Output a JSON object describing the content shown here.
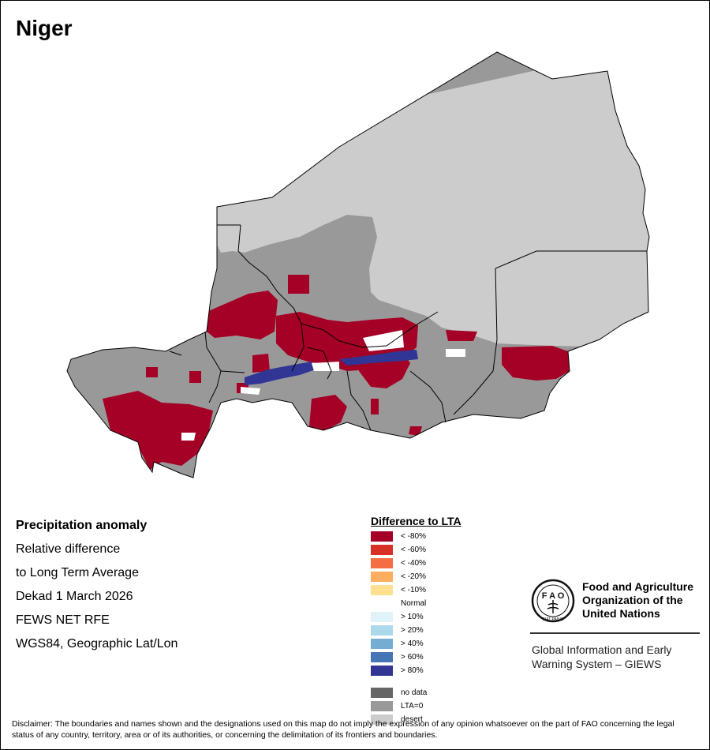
{
  "map": {
    "title": "Niger"
  },
  "info": {
    "heading": "Precipitation anomaly",
    "line1": "Relative difference",
    "line2": "to Long Term Average",
    "line3": "Dekad 1 March 2026",
    "line4": "FEWS NET RFE",
    "line5": "WGS84, Geographic Lat/Lon"
  },
  "legend": {
    "title": "Difference to LTA",
    "items": [
      {
        "label": "< -80%",
        "color": "#a50026"
      },
      {
        "label": "< -60%",
        "color": "#d73027"
      },
      {
        "label": "< -40%",
        "color": "#f46d43"
      },
      {
        "label": "< -20%",
        "color": "#fdae61"
      },
      {
        "label": "< -10%",
        "color": "#fee090"
      },
      {
        "label": "Normal",
        "color": "#ffffff"
      },
      {
        "label": "> 10%",
        "color": "#e0f3f8"
      },
      {
        "label": "> 20%",
        "color": "#abd9e9"
      },
      {
        "label": "> 40%",
        "color": "#74add1"
      },
      {
        "label": "> 60%",
        "color": "#4575b4"
      },
      {
        "label": "> 80%",
        "color": "#313695"
      },
      {
        "label": "no data",
        "color": "#666666"
      },
      {
        "label": "LTA=0",
        "color": "#999999"
      },
      {
        "label": "desert",
        "color": "#cccccc"
      }
    ]
  },
  "fao": {
    "name_line1": "Food and Agriculture",
    "name_line2": "Organization of the",
    "name_line3": "United Nations",
    "seal_text": "FIAT PANIS",
    "giews_line1": "Global Information and Early",
    "giews_line2": "Warning System – GIEWS"
  },
  "disclaimer": "Disclaimer: The boundaries and names shown and the designations used on this map do not imply the expression of any opinion whatsoever on the part of FAO concerning the legal status of any country, territory, area or of its authorities, or concerning the delimitation of its frontiers and boundaries."
}
